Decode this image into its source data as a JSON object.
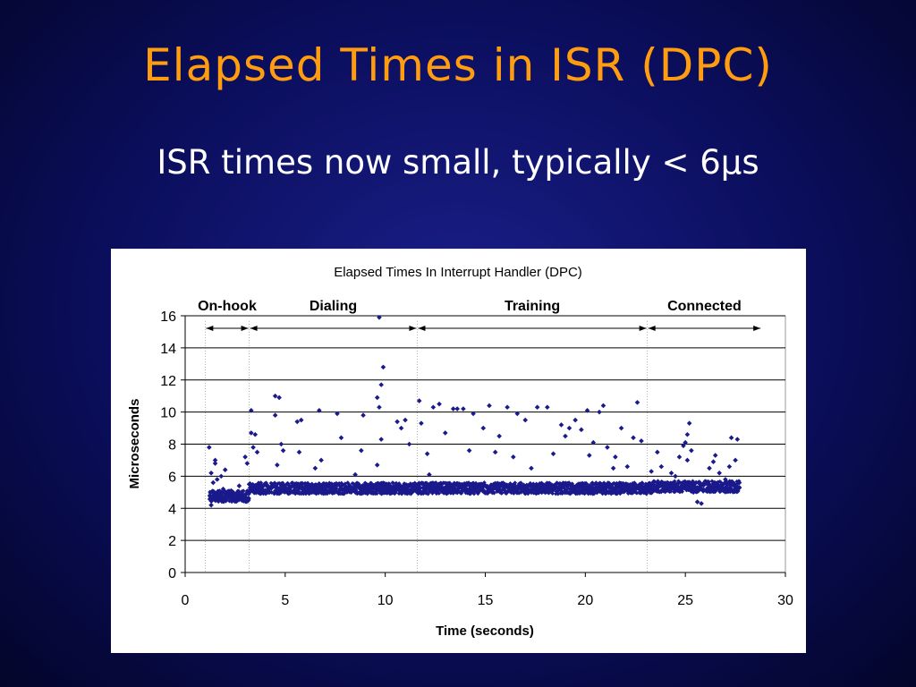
{
  "slide": {
    "title": "Elapsed Times in ISR (DPC)",
    "subtitle": "ISR times now small, typically < 6µs"
  },
  "colors": {
    "background": "#0b0e5c",
    "title": "#ff9c10",
    "points": "#1a1a8c"
  },
  "chart_data": {
    "type": "scatter",
    "title": "Elapsed Times In Interrupt Handler (DPC)",
    "xlabel": "Time (seconds)",
    "ylabel": "Microseconds",
    "xlim": [
      0,
      30
    ],
    "ylim": [
      0,
      16
    ],
    "xticks": [
      0,
      5,
      10,
      15,
      20,
      25,
      30
    ],
    "yticks": [
      0,
      2,
      4,
      6,
      8,
      10,
      12,
      14,
      16
    ],
    "grid": "horizontal",
    "phases": [
      {
        "label": "On-hook",
        "start": 1.0,
        "end": 3.2
      },
      {
        "label": "Dialing",
        "start": 3.2,
        "end": 11.6
      },
      {
        "label": "Training",
        "start": 11.6,
        "end": 23.1
      },
      {
        "label": "Connected",
        "start": 23.1,
        "end": 28.8
      }
    ],
    "points": [
      [
        1.2,
        7.8
      ],
      [
        1.3,
        6.2
      ],
      [
        1.4,
        5.6
      ],
      [
        1.5,
        7.0
      ],
      [
        1.3,
        4.2
      ],
      [
        1.4,
        4.6
      ],
      [
        1.6,
        5.8
      ],
      [
        1.5,
        6.8
      ],
      [
        1.7,
        5.0
      ],
      [
        1.8,
        6.0
      ],
      [
        1.9,
        5.2
      ],
      [
        2.0,
        6.4
      ],
      [
        2.1,
        4.6
      ],
      [
        2.3,
        5.1
      ],
      [
        2.5,
        4.8
      ],
      [
        2.7,
        5.4
      ],
      [
        2.9,
        4.7
      ],
      [
        3.0,
        7.2
      ],
      [
        3.1,
        6.8
      ],
      [
        3.2,
        5.5
      ],
      [
        3.3,
        10.1
      ],
      [
        3.3,
        8.7
      ],
      [
        3.4,
        7.8
      ],
      [
        3.5,
        8.6
      ],
      [
        3.6,
        7.5
      ],
      [
        4.5,
        11.0
      ],
      [
        4.7,
        10.9
      ],
      [
        4.5,
        9.8
      ],
      [
        4.6,
        6.7
      ],
      [
        4.8,
        8.0
      ],
      [
        4.9,
        7.6
      ],
      [
        5.6,
        9.4
      ],
      [
        5.8,
        9.5
      ],
      [
        5.7,
        7.5
      ],
      [
        6.5,
        6.5
      ],
      [
        6.7,
        10.1
      ],
      [
        6.8,
        7.0
      ],
      [
        7.6,
        9.9
      ],
      [
        7.8,
        8.4
      ],
      [
        8.8,
        7.6
      ],
      [
        8.9,
        9.8
      ],
      [
        8.5,
        6.1
      ],
      [
        9.7,
        15.9
      ],
      [
        9.8,
        11.7
      ],
      [
        9.9,
        12.8
      ],
      [
        9.6,
        10.9
      ],
      [
        9.7,
        10.3
      ],
      [
        9.8,
        8.3
      ],
      [
        9.6,
        6.7
      ],
      [
        10.6,
        9.4
      ],
      [
        10.8,
        9.0
      ],
      [
        11.0,
        9.5
      ],
      [
        11.2,
        8.0
      ],
      [
        11.7,
        10.7
      ],
      [
        11.8,
        9.3
      ],
      [
        12.1,
        7.4
      ],
      [
        12.2,
        6.1
      ],
      [
        12.4,
        10.3
      ],
      [
        12.7,
        10.5
      ],
      [
        13.0,
        8.7
      ],
      [
        13.4,
        10.2
      ],
      [
        13.6,
        10.2
      ],
      [
        13.9,
        10.2
      ],
      [
        14.2,
        7.6
      ],
      [
        14.4,
        9.9
      ],
      [
        14.9,
        9.0
      ],
      [
        15.2,
        10.4
      ],
      [
        15.5,
        7.5
      ],
      [
        15.7,
        8.5
      ],
      [
        16.1,
        10.3
      ],
      [
        16.4,
        7.2
      ],
      [
        16.6,
        9.9
      ],
      [
        17.0,
        9.5
      ],
      [
        17.3,
        6.5
      ],
      [
        17.6,
        10.3
      ],
      [
        18.1,
        10.3
      ],
      [
        18.4,
        7.4
      ],
      [
        18.8,
        9.2
      ],
      [
        19.0,
        8.5
      ],
      [
        19.2,
        9.0
      ],
      [
        19.5,
        9.5
      ],
      [
        19.8,
        8.9
      ],
      [
        20.1,
        10.1
      ],
      [
        20.2,
        7.3
      ],
      [
        20.4,
        8.1
      ],
      [
        20.7,
        10.0
      ],
      [
        20.9,
        10.4
      ],
      [
        21.1,
        7.8
      ],
      [
        21.4,
        6.5
      ],
      [
        21.5,
        7.2
      ],
      [
        21.8,
        9.0
      ],
      [
        22.1,
        6.6
      ],
      [
        22.4,
        8.4
      ],
      [
        22.6,
        10.6
      ],
      [
        22.8,
        8.2
      ],
      [
        23.3,
        6.3
      ],
      [
        23.6,
        7.5
      ],
      [
        23.8,
        6.6
      ],
      [
        24.1,
        5.6
      ],
      [
        24.3,
        6.2
      ],
      [
        24.5,
        6.0
      ],
      [
        24.7,
        7.2
      ],
      [
        24.9,
        7.9
      ],
      [
        25.0,
        8.1
      ],
      [
        25.1,
        8.6
      ],
      [
        25.2,
        9.3
      ],
      [
        25.3,
        7.6
      ],
      [
        25.1,
        7.0
      ],
      [
        25.4,
        5.0
      ],
      [
        25.6,
        4.4
      ],
      [
        25.8,
        4.3
      ],
      [
        26.0,
        5.6
      ],
      [
        26.2,
        6.5
      ],
      [
        26.4,
        6.9
      ],
      [
        26.5,
        7.3
      ],
      [
        26.7,
        6.2
      ],
      [
        27.0,
        5.8
      ],
      [
        27.2,
        6.6
      ],
      [
        27.3,
        8.4
      ],
      [
        27.5,
        7.0
      ],
      [
        27.6,
        8.3
      ],
      [
        27.7,
        5.3
      ]
    ],
    "band": [
      {
        "x": 1.2,
        "x_end": 3.2,
        "y_min": 4.4,
        "y_max": 5.1
      },
      {
        "x": 3.2,
        "x_end": 23.4,
        "y_min": 4.9,
        "y_max": 5.6
      },
      {
        "x": 23.4,
        "x_end": 27.7,
        "y_min": 5.0,
        "y_max": 5.7
      }
    ]
  }
}
